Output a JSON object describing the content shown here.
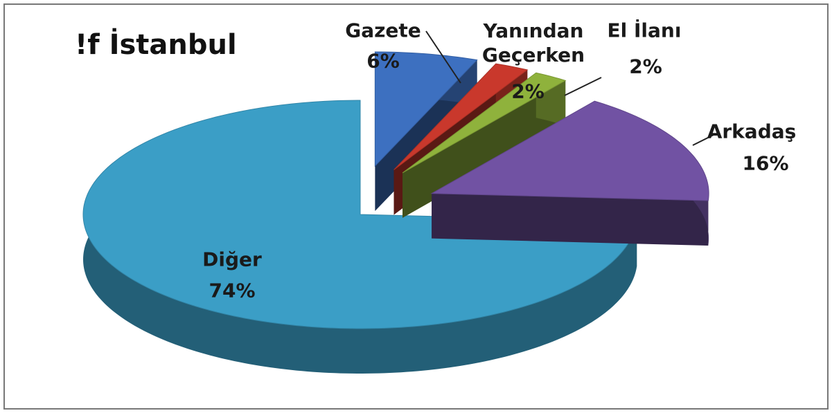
{
  "chart_data": {
    "type": "pie",
    "title": "!f İstanbul",
    "categories": [
      "Gazete",
      "Yanından Geçerken",
      "El İlanı",
      "Arkadaş",
      "Diğer"
    ],
    "values": [
      6,
      2,
      2,
      16,
      74
    ],
    "value_labels": [
      "6%",
      "2%",
      "2%",
      "16%",
      "74%"
    ],
    "colors": [
      "#3d70c0",
      "#c9382c",
      "#8fb23c",
      "#7152a3",
      "#3b9ec6"
    ]
  }
}
